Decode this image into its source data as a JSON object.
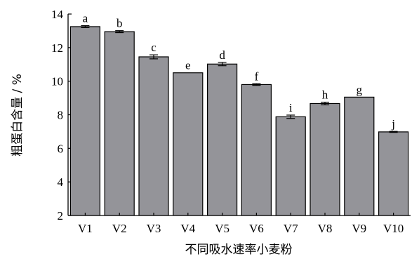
{
  "chart_data": {
    "type": "bar",
    "xlabel": "不同吸水速率小麦粉",
    "ylabel": "粗蛋白含量 / %",
    "ylim": [
      2,
      14
    ],
    "yticks": [
      2,
      4,
      6,
      8,
      10,
      12,
      14
    ],
    "grid": false,
    "legend": "none",
    "categories": [
      "V1",
      "V2",
      "V3",
      "V4",
      "V5",
      "V6",
      "V7",
      "V8",
      "V9",
      "V10"
    ],
    "values": [
      13.25,
      12.95,
      11.45,
      10.5,
      11.02,
      9.8,
      7.88,
      8.67,
      9.05,
      6.98
    ],
    "errors": [
      0.06,
      0.06,
      0.12,
      0.0,
      0.1,
      0.05,
      0.1,
      0.08,
      0.0,
      0.03
    ],
    "letters": [
      "a",
      "b",
      "c",
      "e",
      "d",
      "f",
      "i",
      "h",
      "g",
      "j"
    ],
    "bar_color": "#949499",
    "bar_edge_color": "#000000"
  }
}
